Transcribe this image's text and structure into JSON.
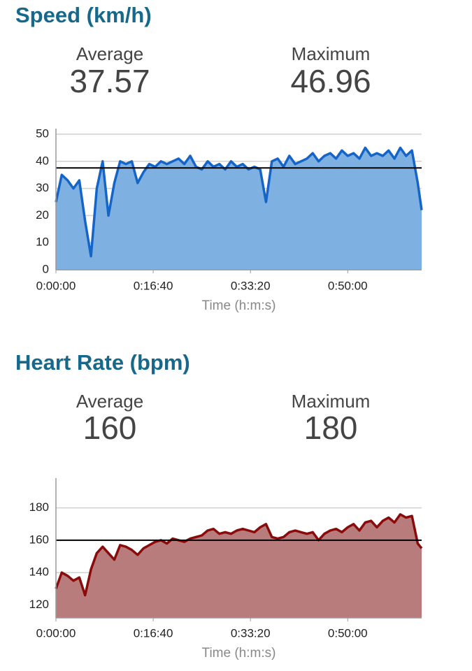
{
  "chart_data": [
    {
      "type": "area",
      "title": "Speed (km/h)",
      "stats": [
        {
          "label": "Average",
          "value": 37.57
        },
        {
          "label": "Maximum",
          "value": 46.96
        }
      ],
      "xlabel": "Time (h:m:s)",
      "x": [
        0,
        60,
        120,
        180,
        240,
        300,
        360,
        420,
        480,
        540,
        600,
        660,
        720,
        780,
        840,
        900,
        960,
        1020,
        1080,
        1140,
        1200,
        1260,
        1320,
        1380,
        1440,
        1500,
        1560,
        1620,
        1680,
        1740,
        1800,
        1860,
        1920,
        1980,
        2040,
        2100,
        2160,
        2220,
        2280,
        2340,
        2400,
        2460,
        2520,
        2580,
        2640,
        2700,
        2760,
        2820,
        2880,
        2940,
        3000,
        3060,
        3120,
        3180,
        3240,
        3300,
        3360,
        3420,
        3480,
        3540,
        3600,
        3660,
        3720,
        3760
      ],
      "values": [
        25,
        35,
        33,
        30,
        33,
        18,
        5,
        30,
        40,
        20,
        32,
        40,
        39,
        40,
        32,
        36,
        39,
        38,
        40,
        39,
        40,
        41,
        39,
        42,
        38,
        37,
        40,
        38,
        39,
        37,
        40,
        38,
        39,
        37,
        38,
        37,
        25,
        40,
        41,
        38,
        42,
        39,
        40,
        41,
        43,
        40,
        42,
        43,
        41,
        44,
        42,
        43,
        41,
        45,
        42,
        43,
        42,
        44,
        41,
        45,
        42,
        44,
        32,
        22
      ],
      "color": "#7eb1e1",
      "line_color": "#1565c8",
      "xlim": [
        0,
        3760
      ],
      "ylim": [
        0,
        50
      ],
      "xticks": [
        {
          "value": 0,
          "label": "0:00:00"
        },
        {
          "value": 1000,
          "label": "0:16:40"
        },
        {
          "value": 2000,
          "label": "0:33:20"
        },
        {
          "value": 3000,
          "label": "0:50:00"
        }
      ],
      "yticks": [
        0,
        10,
        20,
        30,
        40,
        50
      ],
      "grid": true
    },
    {
      "type": "area",
      "title": "Heart Rate (bpm)",
      "stats": [
        {
          "label": "Average",
          "value": 160
        },
        {
          "label": "Maximum",
          "value": 180
        }
      ],
      "xlabel": "Time (h:m:s)",
      "x": [
        0,
        60,
        120,
        180,
        240,
        300,
        360,
        420,
        480,
        540,
        600,
        660,
        720,
        780,
        840,
        900,
        960,
        1020,
        1080,
        1140,
        1200,
        1260,
        1320,
        1380,
        1440,
        1500,
        1560,
        1620,
        1680,
        1740,
        1800,
        1860,
        1920,
        1980,
        2040,
        2100,
        2160,
        2220,
        2280,
        2340,
        2400,
        2460,
        2520,
        2580,
        2640,
        2700,
        2760,
        2820,
        2880,
        2940,
        3000,
        3060,
        3120,
        3180,
        3240,
        3300,
        3360,
        3420,
        3480,
        3540,
        3600,
        3660,
        3720,
        3760
      ],
      "values": [
        130,
        140,
        138,
        135,
        137,
        126,
        142,
        152,
        156,
        152,
        148,
        157,
        156,
        154,
        151,
        155,
        157,
        159,
        160,
        158,
        161,
        160,
        159,
        161,
        162,
        163,
        166,
        167,
        164,
        165,
        164,
        166,
        167,
        166,
        165,
        168,
        170,
        162,
        161,
        162,
        165,
        166,
        165,
        164,
        165,
        160,
        164,
        166,
        167,
        165,
        168,
        170,
        166,
        171,
        172,
        168,
        172,
        174,
        171,
        176,
        174,
        175,
        158,
        155
      ],
      "color": "#b97c7c",
      "line_color": "#8a0b0b",
      "xlim": [
        0,
        3760
      ],
      "ylim": [
        112,
        198
      ],
      "xticks": [
        {
          "value": 0,
          "label": "0:00:00"
        },
        {
          "value": 1000,
          "label": "0:16:40"
        },
        {
          "value": 2000,
          "label": "0:33:20"
        },
        {
          "value": 3000,
          "label": "0:50:00"
        }
      ],
      "yticks": [
        120,
        140,
        160,
        180
      ],
      "grid": true
    }
  ]
}
